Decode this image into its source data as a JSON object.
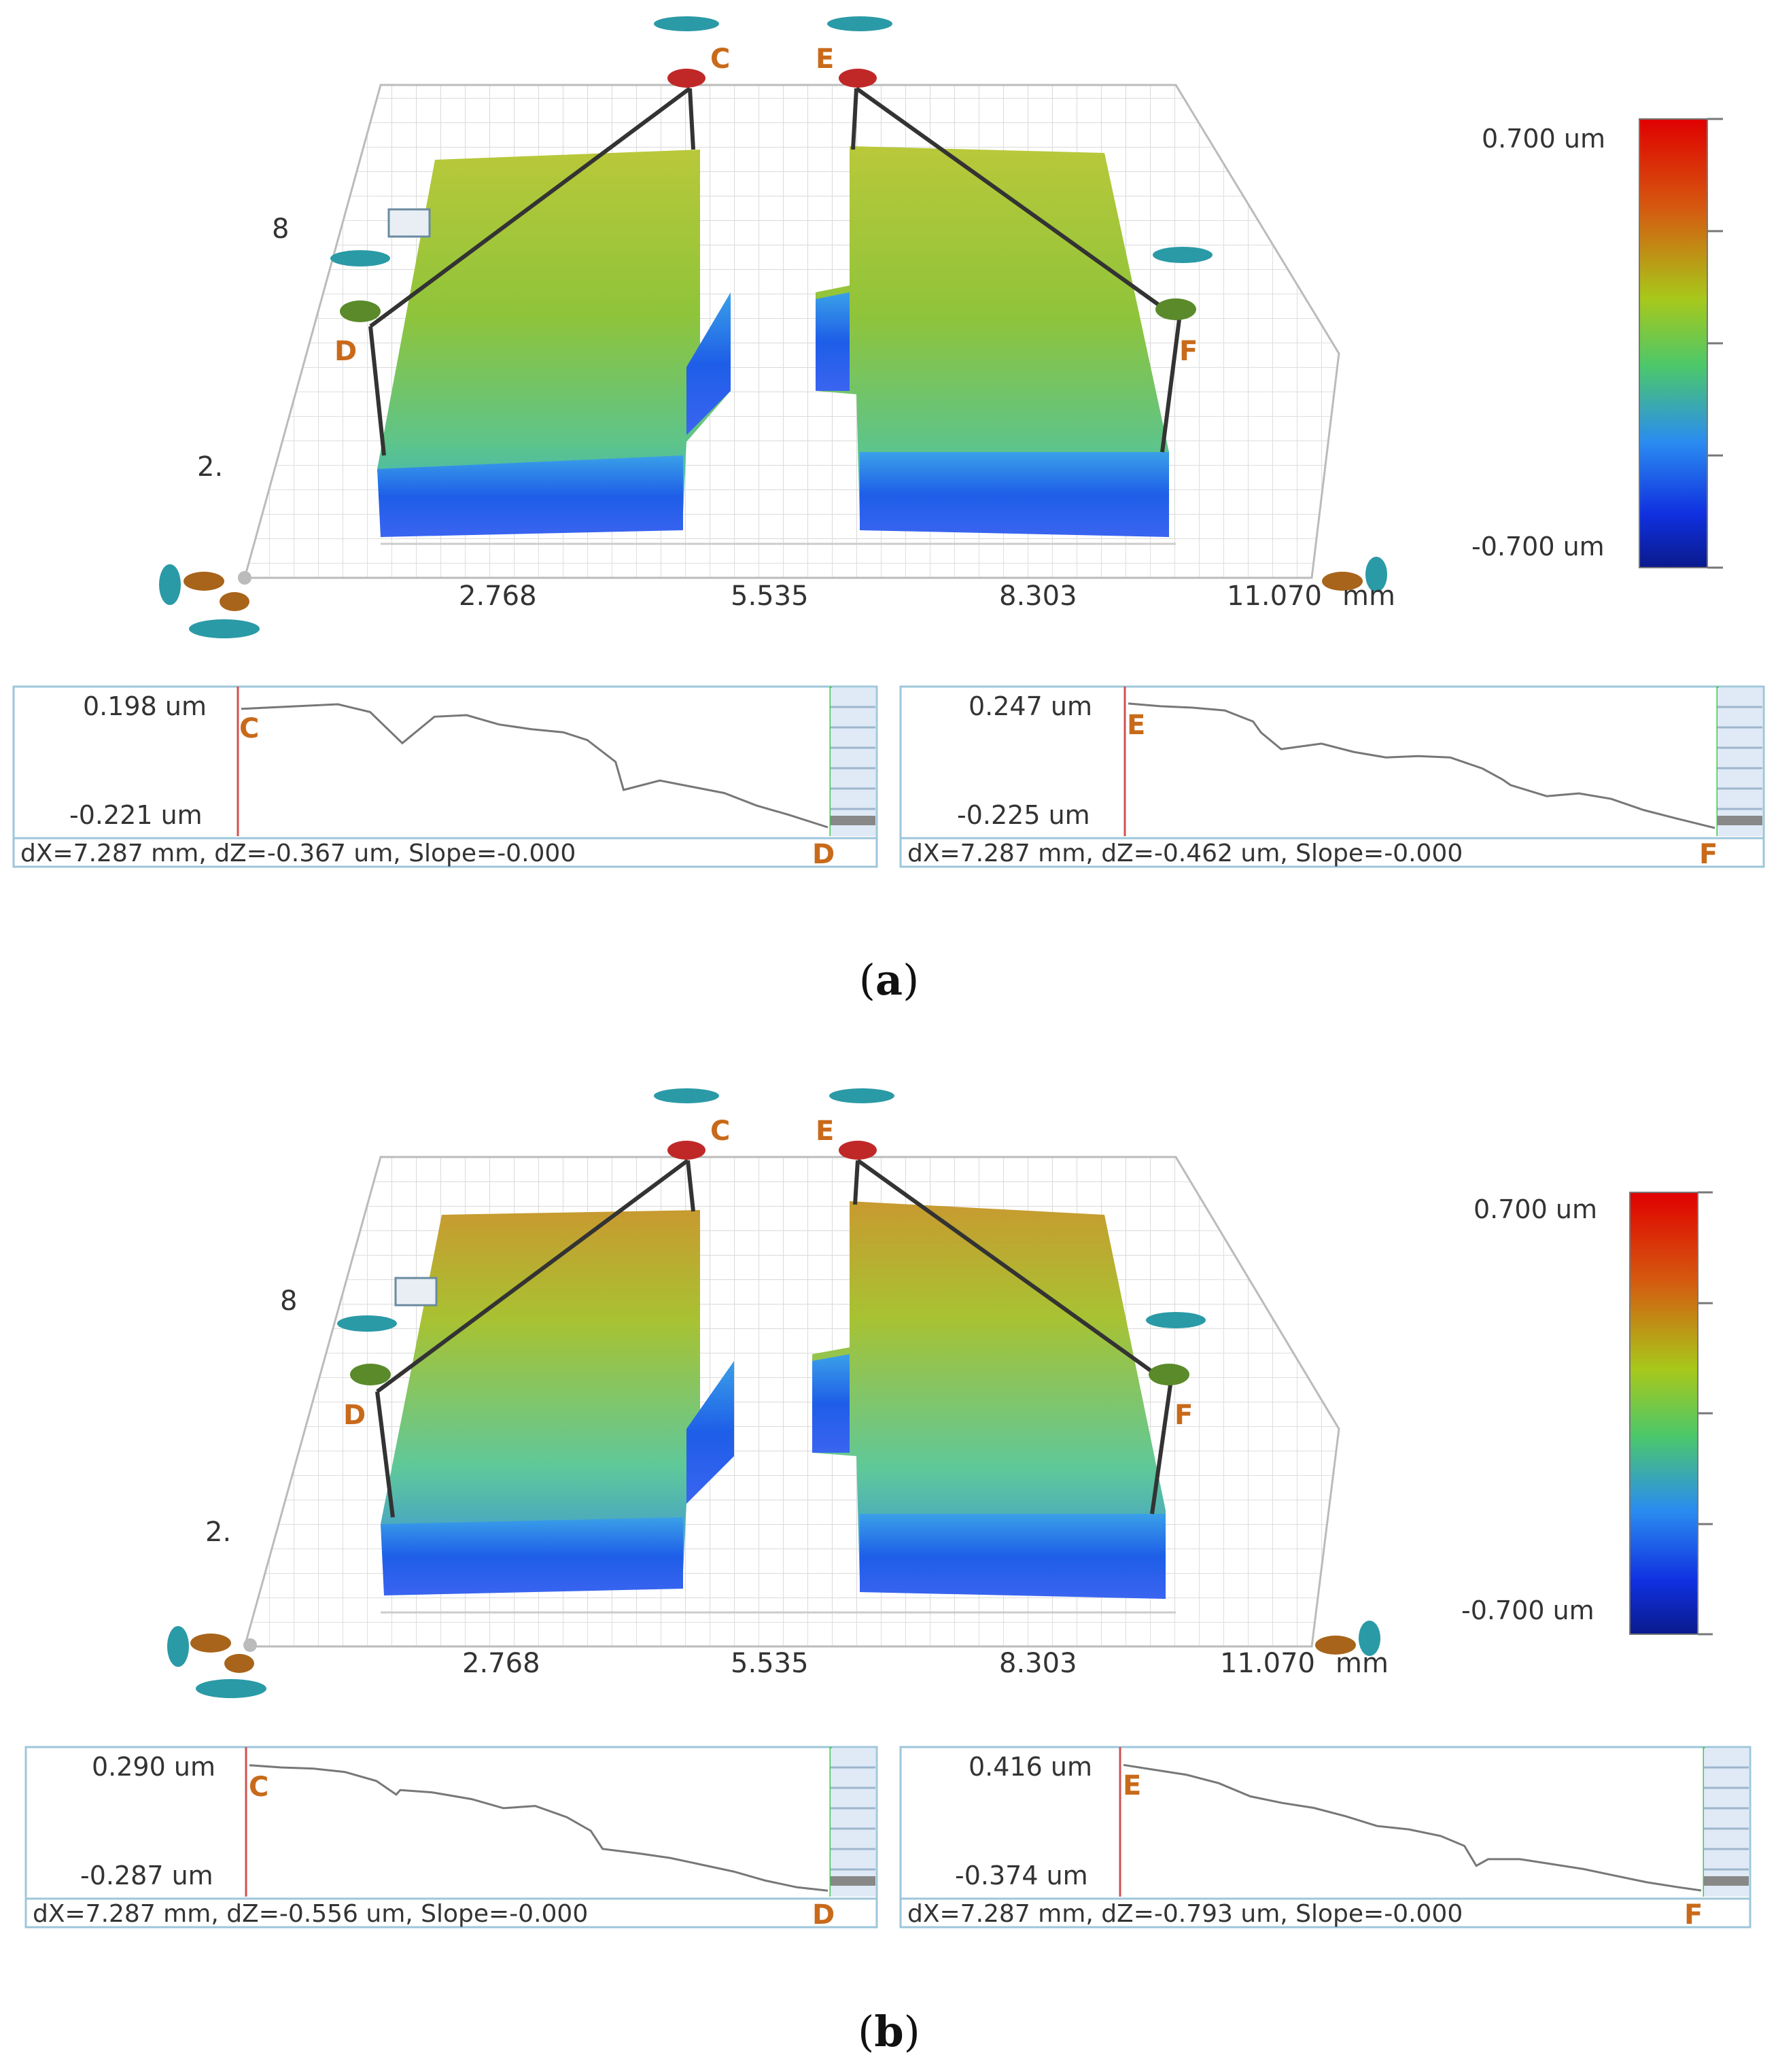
{
  "panels": [
    {
      "caption": "a",
      "colorbar": {
        "max_label": "0.700 um",
        "min_label": "-0.700 um"
      },
      "axis": {
        "ticks": [
          "2.768",
          "5.535",
          "8.303",
          "11.070"
        ],
        "unit": "mm",
        "y_tick_top": "8",
        "y_tick_bottom": "2."
      },
      "markers": [
        "C",
        "D",
        "E",
        "F"
      ],
      "profiles": [
        {
          "from": "C",
          "to": "D",
          "max_label": "0.198 um",
          "min_label": "-0.221 um",
          "status": "dX=7.287 mm, dZ=-0.367 um, Slope=-0.000"
        },
        {
          "from": "E",
          "to": "F",
          "max_label": "0.247 um",
          "min_label": "-0.225 um",
          "status": "dX=7.287 mm, dZ=-0.462 um, Slope=-0.000"
        }
      ]
    },
    {
      "caption": "b",
      "colorbar": {
        "max_label": "0.700 um",
        "min_label": "-0.700 um"
      },
      "axis": {
        "ticks": [
          "2.768",
          "5.535",
          "8.303",
          "11.070"
        ],
        "unit": "mm",
        "y_tick_top": "8",
        "y_tick_bottom": "2."
      },
      "markers": [
        "C",
        "D",
        "E",
        "F"
      ],
      "profiles": [
        {
          "from": "C",
          "to": "D",
          "max_label": "0.290 um",
          "min_label": "-0.287 um",
          "status": "dX=7.287 mm, dZ=-0.556 um, Slope=-0.000"
        },
        {
          "from": "E",
          "to": "F",
          "max_label": "0.416 um",
          "min_label": "-0.374 um",
          "status": "dX=7.287 mm, dZ=-0.793 um, Slope=-0.000"
        }
      ]
    }
  ],
  "chart_data": [
    {
      "type": "line",
      "panel": "a",
      "name_from": "C",
      "name_to": "D",
      "ylim": [
        -0.221,
        0.198
      ],
      "xlim": [
        0,
        7.287
      ],
      "x": [
        0,
        0.4,
        0.8,
        1.2,
        1.6,
        1.8,
        2.0,
        2.4,
        2.8,
        3.2,
        3.6,
        4.0,
        4.3,
        4.65,
        4.75,
        5.2,
        5.6,
        6.0,
        6.4,
        6.8,
        7.287
      ],
      "y": [
        0.17,
        0.175,
        0.18,
        0.185,
        0.16,
        0.11,
        0.06,
        0.145,
        0.15,
        0.12,
        0.105,
        0.095,
        0.07,
        0.0,
        -0.09,
        -0.06,
        -0.08,
        -0.1,
        -0.14,
        -0.17,
        -0.21
      ]
    },
    {
      "type": "line",
      "panel": "a",
      "name_from": "E",
      "name_to": "F",
      "ylim": [
        -0.225,
        0.247
      ],
      "xlim": [
        0,
        7.287
      ],
      "x": [
        0,
        0.4,
        0.8,
        1.2,
        1.55,
        1.65,
        1.9,
        2.4,
        2.8,
        3.2,
        3.6,
        4.0,
        4.4,
        4.65,
        4.75,
        5.2,
        5.6,
        6.0,
        6.4,
        6.8,
        7.287
      ],
      "y": [
        0.235,
        0.225,
        0.22,
        0.21,
        0.17,
        0.13,
        0.07,
        0.09,
        0.06,
        0.04,
        0.045,
        0.04,
        0.0,
        -0.04,
        -0.06,
        -0.1,
        -0.09,
        -0.11,
        -0.15,
        -0.18,
        -0.215
      ]
    },
    {
      "type": "line",
      "panel": "b",
      "name_from": "C",
      "name_to": "D",
      "ylim": [
        -0.287,
        0.29
      ],
      "xlim": [
        0,
        7.287
      ],
      "x": [
        0,
        0.4,
        0.8,
        1.2,
        1.6,
        1.85,
        1.9,
        2.3,
        2.8,
        3.2,
        3.6,
        4.0,
        4.3,
        4.45,
        4.9,
        5.3,
        5.7,
        6.1,
        6.5,
        6.9,
        7.287
      ],
      "y": [
        0.27,
        0.26,
        0.255,
        0.24,
        0.2,
        0.14,
        0.16,
        0.15,
        0.12,
        0.08,
        0.09,
        0.04,
        -0.02,
        -0.1,
        -0.12,
        -0.14,
        -0.17,
        -0.2,
        -0.24,
        -0.27,
        -0.285
      ]
    },
    {
      "type": "line",
      "panel": "b",
      "name_from": "E",
      "name_to": "F",
      "ylim": [
        -0.374,
        0.416
      ],
      "xlim": [
        0,
        7.287
      ],
      "x": [
        0,
        0.4,
        0.8,
        1.2,
        1.6,
        2.0,
        2.4,
        2.8,
        3.2,
        3.6,
        4.0,
        4.3,
        4.45,
        4.6,
        5.0,
        5.4,
        5.8,
        6.2,
        6.6,
        7.0,
        7.287
      ],
      "y": [
        0.39,
        0.36,
        0.33,
        0.28,
        0.2,
        0.16,
        0.13,
        0.08,
        0.02,
        0.0,
        -0.04,
        -0.1,
        -0.22,
        -0.18,
        -0.18,
        -0.21,
        -0.24,
        -0.28,
        -0.32,
        -0.35,
        -0.37
      ]
    }
  ]
}
